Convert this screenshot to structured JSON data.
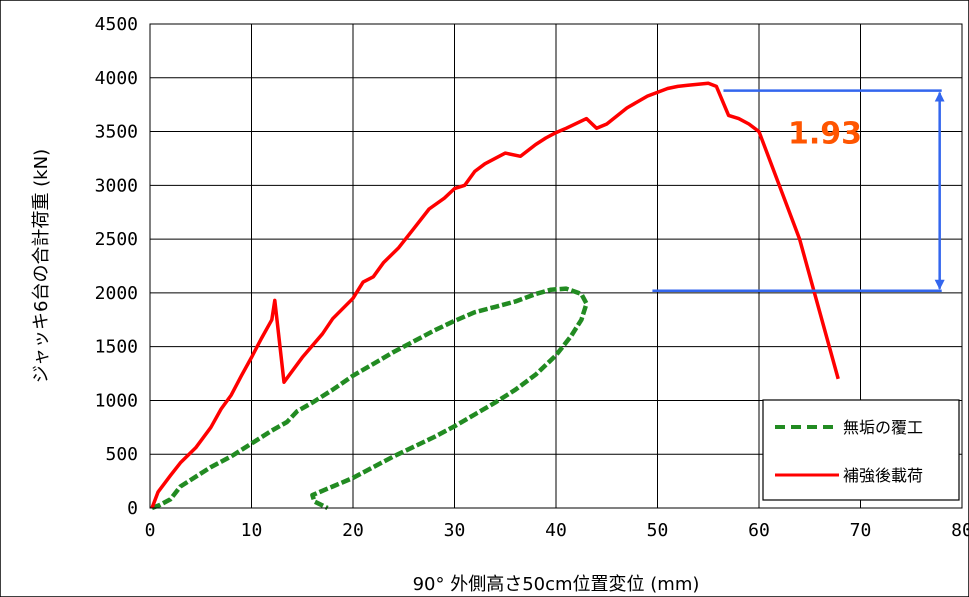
{
  "chart_data": {
    "type": "line",
    "title": "",
    "xlabel": "90° 外側高さ50cm位置変位 (mm)",
    "ylabel": "ジャッキ6台の合計荷重 (kN)",
    "xlim": [
      0,
      80
    ],
    "ylim": [
      0,
      4500
    ],
    "x_ticks": [
      0,
      10,
      20,
      30,
      40,
      50,
      60,
      70,
      80
    ],
    "y_ticks": [
      0,
      500,
      1000,
      1500,
      2000,
      2500,
      3000,
      3500,
      4000,
      4500
    ],
    "grid": true,
    "legend_position": "bottom-right",
    "series": [
      {
        "name": "無垢の覆工",
        "color": "#228B22",
        "style": "dashed",
        "points": [
          [
            0.2,
            0
          ],
          [
            1,
            30
          ],
          [
            2,
            80
          ],
          [
            3,
            200
          ],
          [
            4,
            260
          ],
          [
            6,
            380
          ],
          [
            8,
            480
          ],
          [
            10,
            600
          ],
          [
            12,
            720
          ],
          [
            13.5,
            800
          ],
          [
            14.5,
            900
          ],
          [
            16,
            980
          ],
          [
            18,
            1100
          ],
          [
            20,
            1230
          ],
          [
            22,
            1340
          ],
          [
            24,
            1450
          ],
          [
            26,
            1550
          ],
          [
            28,
            1650
          ],
          [
            30,
            1740
          ],
          [
            32,
            1820
          ],
          [
            34,
            1870
          ],
          [
            36,
            1920
          ],
          [
            38,
            1990
          ],
          [
            39.5,
            2030
          ],
          [
            41,
            2040
          ],
          [
            42.5,
            1990
          ],
          [
            43,
            1900
          ],
          [
            42.5,
            1750
          ],
          [
            41.5,
            1600
          ],
          [
            40,
            1420
          ],
          [
            38,
            1240
          ],
          [
            36,
            1100
          ],
          [
            34,
            980
          ],
          [
            32,
            870
          ],
          [
            30,
            760
          ],
          [
            28,
            660
          ],
          [
            26,
            570
          ],
          [
            24,
            480
          ],
          [
            22,
            380
          ],
          [
            20,
            280
          ],
          [
            18,
            200
          ],
          [
            16,
            120
          ],
          [
            16.2,
            60
          ],
          [
            17.5,
            0
          ]
        ]
      },
      {
        "name": "補強後載荷",
        "color": "#ff0000",
        "style": "solid",
        "points": [
          [
            0.2,
            0
          ],
          [
            0.8,
            150
          ],
          [
            2,
            300
          ],
          [
            3,
            420
          ],
          [
            4.5,
            560
          ],
          [
            6,
            750
          ],
          [
            7,
            920
          ],
          [
            8,
            1050
          ],
          [
            9,
            1230
          ],
          [
            10,
            1400
          ],
          [
            11,
            1580
          ],
          [
            12,
            1750
          ],
          [
            12.3,
            1930
          ],
          [
            13.2,
            1170
          ],
          [
            15,
            1400
          ],
          [
            17,
            1620
          ],
          [
            18,
            1760
          ],
          [
            20,
            1950
          ],
          [
            21,
            2100
          ],
          [
            22,
            2150
          ],
          [
            23,
            2280
          ],
          [
            24.5,
            2420
          ],
          [
            26,
            2600
          ],
          [
            27.5,
            2780
          ],
          [
            29,
            2880
          ],
          [
            30,
            2970
          ],
          [
            31,
            3000
          ],
          [
            32,
            3130
          ],
          [
            33,
            3200
          ],
          [
            35,
            3300
          ],
          [
            36.5,
            3270
          ],
          [
            38,
            3380
          ],
          [
            39,
            3440
          ],
          [
            40,
            3490
          ],
          [
            41,
            3530
          ],
          [
            43,
            3620
          ],
          [
            44,
            3530
          ],
          [
            45,
            3570
          ],
          [
            47,
            3720
          ],
          [
            49,
            3830
          ],
          [
            51,
            3900
          ],
          [
            52,
            3920
          ],
          [
            53,
            3930
          ],
          [
            54,
            3940
          ],
          [
            55,
            3950
          ],
          [
            55.8,
            3920
          ],
          [
            57,
            3650
          ],
          [
            58,
            3620
          ],
          [
            59,
            3570
          ],
          [
            60,
            3500
          ],
          [
            64,
            2500
          ],
          [
            67.8,
            1200
          ]
        ]
      }
    ],
    "annotations": {
      "ratio_label": "1.93",
      "ratio_color": "#ff5500",
      "bracket_color": "#3366ee",
      "upper_level": 3880,
      "lower_level": 2020,
      "upper_x_from": 56.5,
      "lower_x_from": 49.5,
      "lines_x_to": 78,
      "arrow_x": 77.8,
      "label_position": [
        66.5,
        3500
      ]
    }
  }
}
